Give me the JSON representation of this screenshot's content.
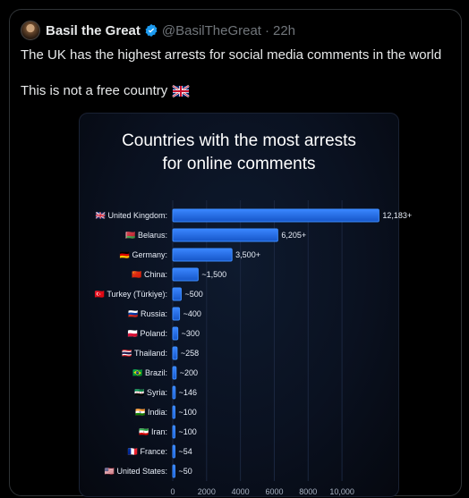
{
  "tweet": {
    "author_name": "Basil the Great",
    "handle": "@BasilTheGreat",
    "separator": "·",
    "time": "22h",
    "text_line1": "The UK has the highest arrests for social media comments in the world",
    "text_line2": "This is not a free country",
    "icons": {
      "verified": "verified-badge-icon",
      "flag": "uk-flag-emoji"
    },
    "colors": {
      "verified": "#1d9bf0",
      "muted": "#71767b",
      "text": "#e7e9ea"
    }
  },
  "chart_data": {
    "type": "bar",
    "orientation": "horizontal",
    "title_line1": "Countries with the most arrests",
    "title_line2": "for online comments",
    "categories": [
      "🇬🇧 United Kingdom:",
      "🇧🇾 Belarus:",
      "🇩🇪 Germany:",
      "🇨🇳 China:",
      "🇹🇷 Turkey (Türkiye):",
      "🇷🇺 Russia:",
      "🇵🇱 Poland:",
      "🇹🇭 Thailand:",
      "🇧🇷 Brazil:",
      "🇸🇾 Syria:",
      "🇮🇳 India:",
      "🇮🇷 Iran:",
      "🇫🇷 France:",
      "🇺🇸 United States:"
    ],
    "values": [
      12183,
      6205,
      3500,
      1500,
      500,
      400,
      300,
      258,
      200,
      146,
      100,
      100,
      54,
      50
    ],
    "value_labels": [
      "12,183+",
      "6,205+",
      "3,500+",
      "~1,500",
      "~500",
      "~400",
      "~300",
      "~258",
      "~200",
      "~146",
      "~100",
      "~100",
      "~54",
      "~50"
    ],
    "x_ticks": [
      "0",
      "2000",
      "4000",
      "6000",
      "8000",
      "10,000"
    ],
    "xlim": [
      0,
      11000
    ],
    "bar_color": "#1f6fe8"
  }
}
